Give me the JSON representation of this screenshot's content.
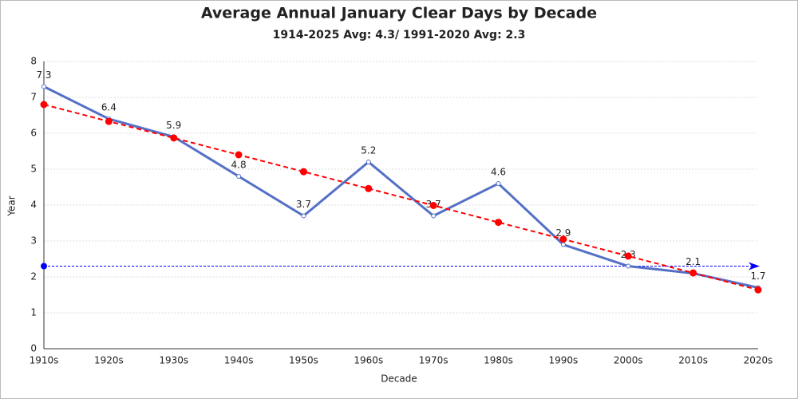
{
  "chart_data": {
    "type": "line",
    "title": "Average Annual January Clear Days by Decade",
    "subtitle": "1914-2025 Avg: 4.3/ 1991-2020 Avg: 2.3",
    "x_label": "Decade",
    "y_label": "Year",
    "categories": [
      "1910s",
      "1920s",
      "1930s",
      "1940s",
      "1950s",
      "1960s",
      "1970s",
      "1980s",
      "1990s",
      "2000s",
      "2010s",
      "2020s"
    ],
    "series": [
      {
        "color": "#5470c6",
        "values": [
          7.3,
          6.4,
          5.9,
          4.8,
          3.7,
          5.2,
          3.7,
          4.6,
          2.9,
          2.3,
          2.1,
          1.7
        ],
        "data_labels": true
      },
      {
        "color": "#ff0000",
        "dashed": true,
        "values": [
          6.8,
          6.33,
          5.87,
          5.4,
          4.93,
          4.46,
          3.99,
          3.52,
          3.05,
          2.58,
          2.11,
          1.64
        ]
      }
    ],
    "reference_line": {
      "value": 2.3,
      "color": "#0000ff"
    },
    "ylim": [
      0,
      8
    ],
    "yticks": [
      0,
      1,
      2,
      3,
      4,
      5,
      6,
      7,
      8
    ],
    "grid": true
  }
}
